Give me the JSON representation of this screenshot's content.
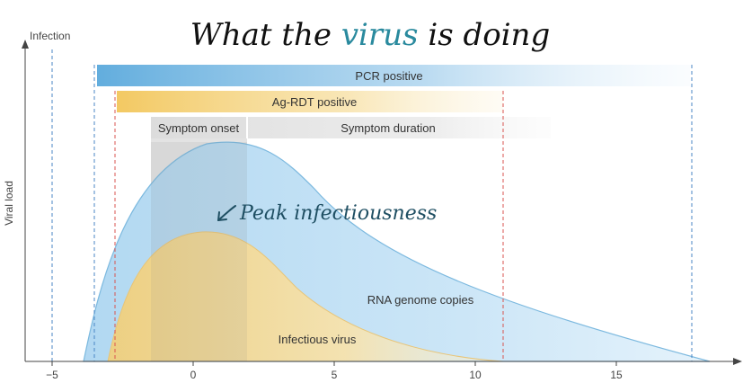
{
  "title": {
    "prefix": "What the ",
    "highlight": "virus",
    "suffix": " is doing",
    "highlight_color": "#2a8a9e"
  },
  "axes": {
    "infection_label": "Infection",
    "y_label": "Viral load",
    "x_ticks": [
      "−5",
      "0",
      "5",
      "10",
      "15"
    ],
    "x_tick_values": [
      -5,
      0,
      5,
      10,
      15
    ]
  },
  "bars": {
    "pcr_label": "PCR positive",
    "ag_label": "Ag-RDT positive",
    "symptom_onset_label": "Symptom onset",
    "symptom_duration_label": "Symptom duration"
  },
  "curves": {
    "rna_label": "RNA genome copies",
    "infectious_label": "Infectious virus"
  },
  "annotation": {
    "peak_label": "Peak infectiousness",
    "color": "#1f4f63"
  },
  "colors": {
    "pcr_blue": "#5aa9dc",
    "ag_yellow": "#f2c65a",
    "rna_fill": "#bfe0f5",
    "rna_stroke": "#7cb9df",
    "infectious_fill": "#f5dc9c",
    "symptom_band": "#c9c9c9",
    "blue_dash": "#4a86c5",
    "red_dash": "#d9534f"
  }
}
